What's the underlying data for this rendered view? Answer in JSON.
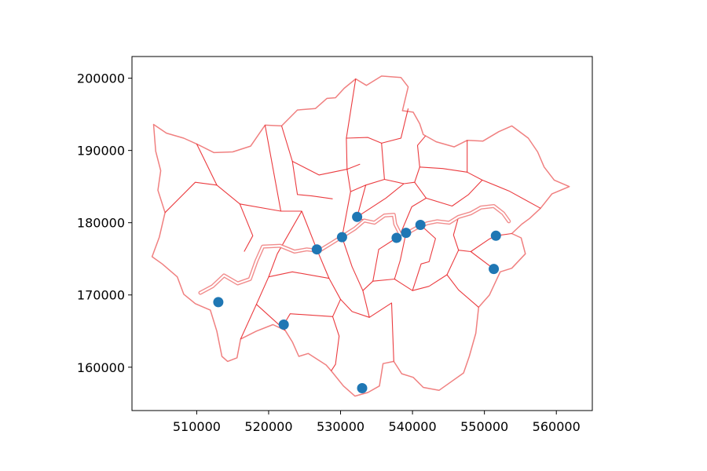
{
  "chart_data": {
    "type": "scatter",
    "title": "",
    "xlabel": "",
    "ylabel": "",
    "xlim": [
      501000,
      565000
    ],
    "ylim": [
      154000,
      203000
    ],
    "grid": false,
    "x_ticks": [
      510000,
      520000,
      530000,
      540000,
      550000,
      560000
    ],
    "x_tick_labels": [
      "510000",
      "520000",
      "530000",
      "540000",
      "550000",
      "560000"
    ],
    "y_ticks": [
      160000,
      170000,
      180000,
      190000,
      200000
    ],
    "y_tick_labels": [
      "160000",
      "170000",
      "180000",
      "190000",
      "200000"
    ],
    "series": [
      {
        "marker_color": "#1f77b4",
        "points": [
          {
            "x": 513000,
            "y": 169000
          },
          {
            "x": 522100,
            "y": 165900
          },
          {
            "x": 526700,
            "y": 176300
          },
          {
            "x": 530200,
            "y": 178000
          },
          {
            "x": 532300,
            "y": 180800
          },
          {
            "x": 533000,
            "y": 157100
          },
          {
            "x": 537800,
            "y": 177900
          },
          {
            "x": 539100,
            "y": 178600
          },
          {
            "x": 541100,
            "y": 179700
          },
          {
            "x": 551300,
            "y": 173600
          },
          {
            "x": 551600,
            "y": 178200
          }
        ]
      }
    ],
    "boundaries": {
      "stroke_color": "#e8191d",
      "outer_boundary_color": "#f08080",
      "outline": [
        [
          504000,
          193600
        ],
        [
          505800,
          192400
        ],
        [
          508200,
          191700
        ],
        [
          510000,
          190900
        ],
        [
          512400,
          189700
        ],
        [
          515000,
          189800
        ],
        [
          517500,
          190600
        ],
        [
          519500,
          193500
        ],
        [
          521800,
          193400
        ],
        [
          524000,
          195600
        ],
        [
          526500,
          195800
        ],
        [
          528100,
          197200
        ],
        [
          529300,
          197300
        ],
        [
          530500,
          198600
        ],
        [
          532100,
          199900
        ],
        [
          533600,
          199000
        ],
        [
          535700,
          200300
        ],
        [
          538400,
          200100
        ],
        [
          539400,
          198800
        ],
        [
          538600,
          195500
        ],
        [
          540100,
          195300
        ],
        [
          541000,
          193700
        ],
        [
          541500,
          192200
        ],
        [
          543300,
          191200
        ],
        [
          545800,
          190500
        ],
        [
          547600,
          191400
        ],
        [
          549800,
          191300
        ],
        [
          552000,
          192600
        ],
        [
          553800,
          193400
        ],
        [
          556100,
          191700
        ],
        [
          557400,
          189800
        ],
        [
          558300,
          187700
        ],
        [
          559700,
          185900
        ],
        [
          561800,
          185000
        ],
        [
          559400,
          184000
        ],
        [
          557800,
          182000
        ],
        [
          556300,
          180600
        ],
        [
          555200,
          179800
        ],
        [
          553800,
          178500
        ],
        [
          555100,
          177900
        ],
        [
          555700,
          175700
        ],
        [
          553800,
          173700
        ],
        [
          552200,
          173200
        ],
        [
          550700,
          170000
        ],
        [
          549200,
          168300
        ],
        [
          548800,
          164700
        ],
        [
          547900,
          161500
        ],
        [
          547100,
          159200
        ],
        [
          545400,
          158000
        ],
        [
          543700,
          156800
        ],
        [
          541500,
          157200
        ],
        [
          540100,
          158600
        ],
        [
          538500,
          159100
        ],
        [
          537400,
          160800
        ],
        [
          535900,
          160500
        ],
        [
          535400,
          157400
        ],
        [
          533800,
          156500
        ],
        [
          532000,
          156000
        ],
        [
          530400,
          157400
        ],
        [
          528700,
          159500
        ],
        [
          528000,
          160300
        ],
        [
          525500,
          161900
        ],
        [
          524200,
          161500
        ],
        [
          523300,
          163500
        ],
        [
          522300,
          165100
        ],
        [
          520600,
          165900
        ],
        [
          518300,
          165000
        ],
        [
          516100,
          163900
        ],
        [
          515600,
          161300
        ],
        [
          514300,
          160800
        ],
        [
          513500,
          161500
        ],
        [
          512800,
          165000
        ],
        [
          511900,
          167900
        ],
        [
          509800,
          168800
        ],
        [
          508200,
          170100
        ],
        [
          507300,
          172500
        ],
        [
          505200,
          174300
        ],
        [
          503800,
          175300
        ],
        [
          504800,
          178000
        ],
        [
          505600,
          181400
        ],
        [
          504600,
          184500
        ],
        [
          505000,
          187200
        ],
        [
          504300,
          189900
        ],
        [
          504000,
          193600
        ]
      ],
      "river_thames": [
        [
          510500,
          170300
        ],
        [
          512200,
          171200
        ],
        [
          513800,
          172700
        ],
        [
          515700,
          171600
        ],
        [
          517400,
          172200
        ],
        [
          518300,
          174700
        ],
        [
          519200,
          176700
        ],
        [
          521600,
          176800
        ],
        [
          523600,
          176000
        ],
        [
          525300,
          176300
        ],
        [
          527000,
          176100
        ],
        [
          528800,
          177200
        ],
        [
          530400,
          178200
        ],
        [
          532000,
          179200
        ],
        [
          533300,
          180300
        ],
        [
          534700,
          180000
        ],
        [
          536100,
          181000
        ],
        [
          537400,
          181100
        ],
        [
          537600,
          179800
        ],
        [
          538300,
          178400
        ],
        [
          539500,
          178700
        ],
        [
          540600,
          179300
        ],
        [
          542000,
          179900
        ],
        [
          543400,
          180200
        ],
        [
          545100,
          180000
        ],
        [
          546400,
          180800
        ],
        [
          548100,
          181300
        ],
        [
          549500,
          182100
        ],
        [
          551300,
          182300
        ],
        [
          552600,
          181300
        ],
        [
          553400,
          180200
        ]
      ],
      "borough_lines": [
        [
          [
            510000,
            190900
          ],
          [
            512800,
            185200
          ],
          [
            516000,
            182600
          ],
          [
            517800,
            178200
          ],
          [
            516600,
            176000
          ]
        ],
        [
          [
            512800,
            185200
          ],
          [
            509800,
            185600
          ],
          [
            505600,
            181400
          ]
        ],
        [
          [
            516000,
            182600
          ],
          [
            521700,
            181600
          ],
          [
            524600,
            181600
          ],
          [
            526700,
            176300
          ]
        ],
        [
          [
            519500,
            193500
          ],
          [
            521700,
            181600
          ]
        ],
        [
          [
            521800,
            193400
          ],
          [
            523300,
            188500
          ],
          [
            524000,
            183900
          ],
          [
            526000,
            183700
          ],
          [
            528900,
            183300
          ]
        ],
        [
          [
            523300,
            188500
          ],
          [
            527000,
            186600
          ],
          [
            530900,
            187400
          ],
          [
            532700,
            188100
          ]
        ],
        [
          [
            532100,
            199900
          ],
          [
            530800,
            191700
          ],
          [
            530900,
            187400
          ],
          [
            531400,
            184300
          ],
          [
            530200,
            178000
          ]
        ],
        [
          [
            530800,
            191700
          ],
          [
            533800,
            191800
          ],
          [
            535700,
            191000
          ],
          [
            538400,
            191700
          ],
          [
            539400,
            195800
          ]
        ],
        [
          [
            535700,
            191000
          ],
          [
            536100,
            186000
          ],
          [
            533500,
            185200
          ],
          [
            531400,
            184300
          ]
        ],
        [
          [
            536100,
            186000
          ],
          [
            538800,
            185400
          ],
          [
            540300,
            185600
          ],
          [
            541000,
            187700
          ],
          [
            540700,
            190700
          ],
          [
            541800,
            192000
          ]
        ],
        [
          [
            541000,
            187700
          ],
          [
            544200,
            187500
          ],
          [
            547600,
            187000
          ],
          [
            547600,
            191400
          ]
        ],
        [
          [
            547600,
            187000
          ],
          [
            549700,
            185900
          ],
          [
            553400,
            184400
          ],
          [
            557800,
            182000
          ]
        ],
        [
          [
            540300,
            185600
          ],
          [
            541900,
            183400
          ],
          [
            539900,
            182200
          ],
          [
            538300,
            178400
          ]
        ],
        [
          [
            541900,
            183400
          ],
          [
            545500,
            182300
          ],
          [
            547800,
            183900
          ],
          [
            549700,
            185900
          ]
        ],
        [
          [
            533500,
            185200
          ],
          [
            532300,
            180800
          ],
          [
            533300,
            180300
          ]
        ],
        [
          [
            532300,
            180800
          ],
          [
            536300,
            183400
          ],
          [
            538800,
            185400
          ]
        ],
        [
          [
            526700,
            176300
          ],
          [
            528400,
            172300
          ],
          [
            530000,
            169400
          ],
          [
            531600,
            167700
          ]
        ],
        [
          [
            524600,
            181600
          ],
          [
            521200,
            175700
          ],
          [
            520000,
            172500
          ],
          [
            518300,
            168700
          ],
          [
            516100,
            163900
          ]
        ],
        [
          [
            520000,
            172500
          ],
          [
            523300,
            173200
          ],
          [
            528400,
            172300
          ]
        ],
        [
          [
            518300,
            168700
          ],
          [
            522300,
            165100
          ]
        ],
        [
          [
            522100,
            165900
          ],
          [
            523000,
            167400
          ],
          [
            528900,
            167000
          ],
          [
            530000,
            169400
          ]
        ],
        [
          [
            528900,
            167000
          ],
          [
            529800,
            164300
          ],
          [
            529300,
            160400
          ],
          [
            528700,
            159500
          ]
        ],
        [
          [
            531600,
            167700
          ],
          [
            534000,
            166900
          ],
          [
            537100,
            168900
          ],
          [
            537400,
            160800
          ]
        ],
        [
          [
            530200,
            178000
          ],
          [
            531600,
            173900
          ],
          [
            533100,
            170600
          ],
          [
            534000,
            166900
          ]
        ],
        [
          [
            533100,
            170600
          ],
          [
            534500,
            171900
          ],
          [
            537500,
            172200
          ],
          [
            540000,
            170600
          ],
          [
            542300,
            171200
          ]
        ],
        [
          [
            534500,
            171900
          ],
          [
            535300,
            176300
          ],
          [
            537800,
            177900
          ]
        ],
        [
          [
            537500,
            172200
          ],
          [
            538300,
            174800
          ],
          [
            539100,
            178600
          ]
        ],
        [
          [
            540000,
            170600
          ],
          [
            541200,
            174300
          ],
          [
            542300,
            174600
          ],
          [
            543200,
            177800
          ],
          [
            541100,
            179700
          ]
        ],
        [
          [
            542300,
            171200
          ],
          [
            544800,
            172800
          ],
          [
            546400,
            170700
          ],
          [
            549200,
            168300
          ]
        ],
        [
          [
            544800,
            172800
          ],
          [
            546400,
            176200
          ],
          [
            548100,
            176000
          ],
          [
            551300,
            173600
          ]
        ],
        [
          [
            546400,
            176200
          ],
          [
            545700,
            178300
          ],
          [
            546400,
            180800
          ]
        ],
        [
          [
            548100,
            176000
          ],
          [
            550600,
            177700
          ],
          [
            551600,
            178200
          ],
          [
            553800,
            178500
          ]
        ]
      ]
    }
  }
}
